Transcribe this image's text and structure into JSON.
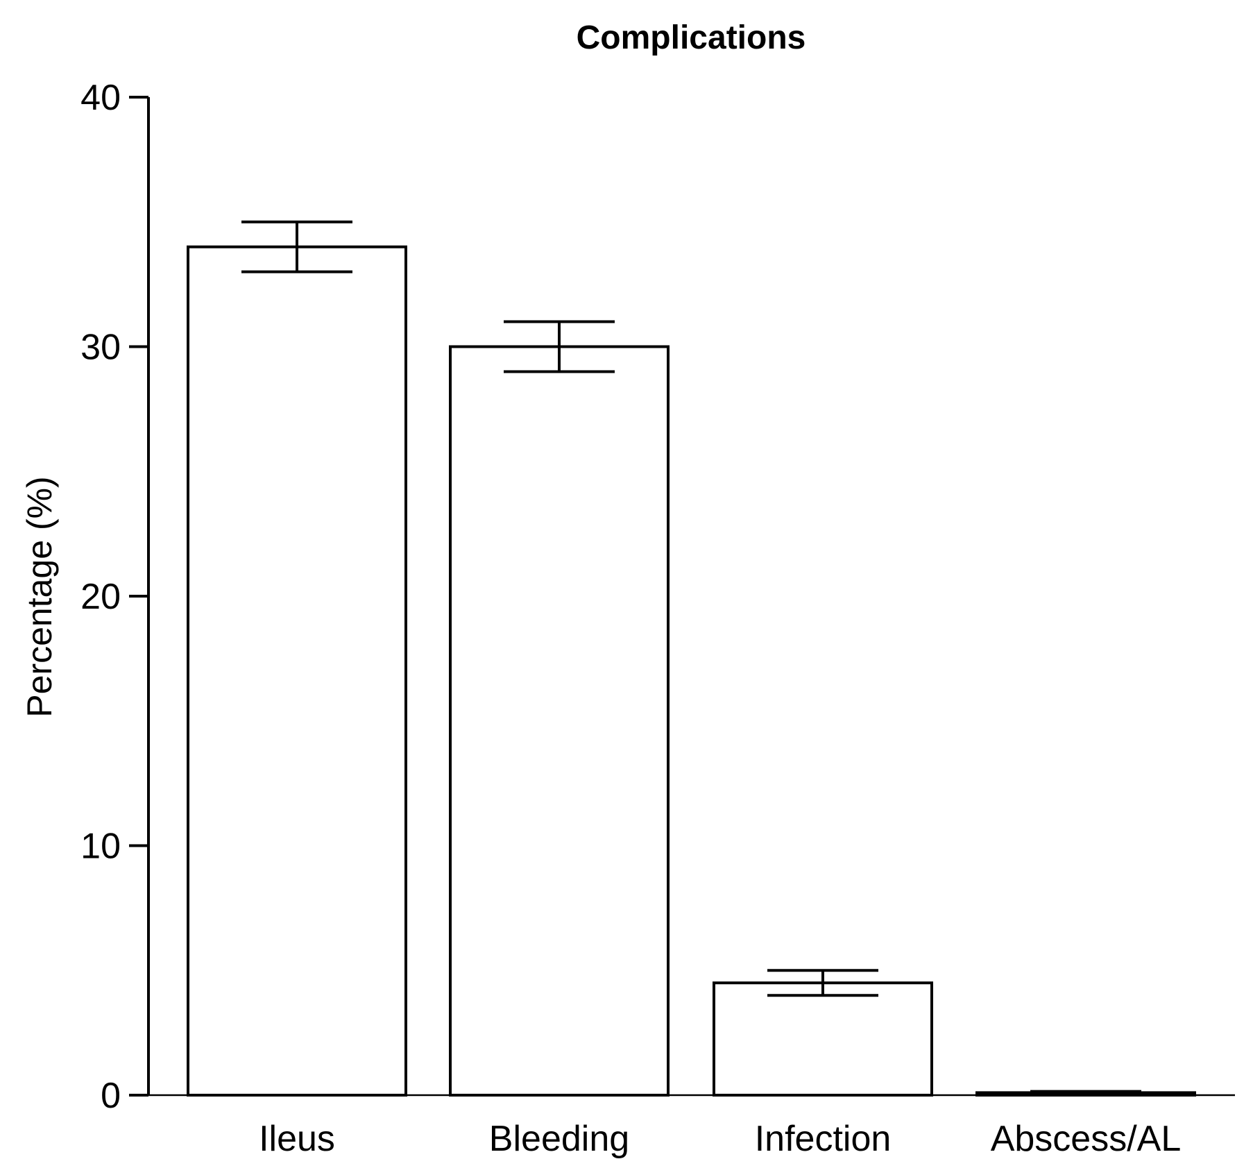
{
  "chart_data": {
    "type": "bar",
    "title": "Complications",
    "xlabel": "",
    "ylabel": "Percentage (%)",
    "ylim": [
      0,
      40
    ],
    "yticks": [
      0,
      10,
      20,
      30,
      40
    ],
    "ytick_labels": [
      "0",
      "10",
      "20",
      "30",
      "40"
    ],
    "categories": [
      "Ileus",
      "Bleeding",
      "Infection",
      "Abscess/AL"
    ],
    "values": [
      34,
      30,
      4.5,
      0.1
    ],
    "error_low": [
      33,
      29,
      4.0,
      0.05
    ],
    "error_high": [
      35,
      31,
      5.0,
      0.15
    ],
    "grid": false,
    "legend": "none"
  }
}
